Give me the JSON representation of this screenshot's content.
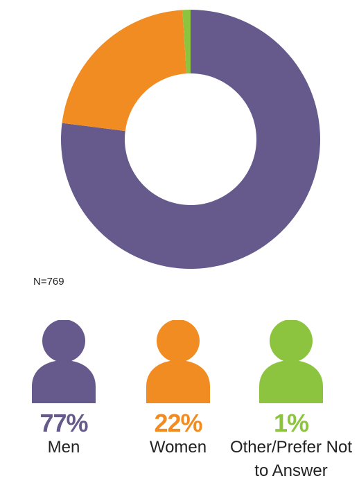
{
  "chart_data": {
    "type": "donut",
    "categories": [
      "Men",
      "Women",
      "Other/Prefer Not to Answer"
    ],
    "values": [
      77,
      22,
      1
    ],
    "value_labels": [
      "77%",
      "22%",
      "1%"
    ],
    "colors": [
      "#665a8c",
      "#f08c22",
      "#8cc43f"
    ],
    "annotation": "N=769"
  }
}
